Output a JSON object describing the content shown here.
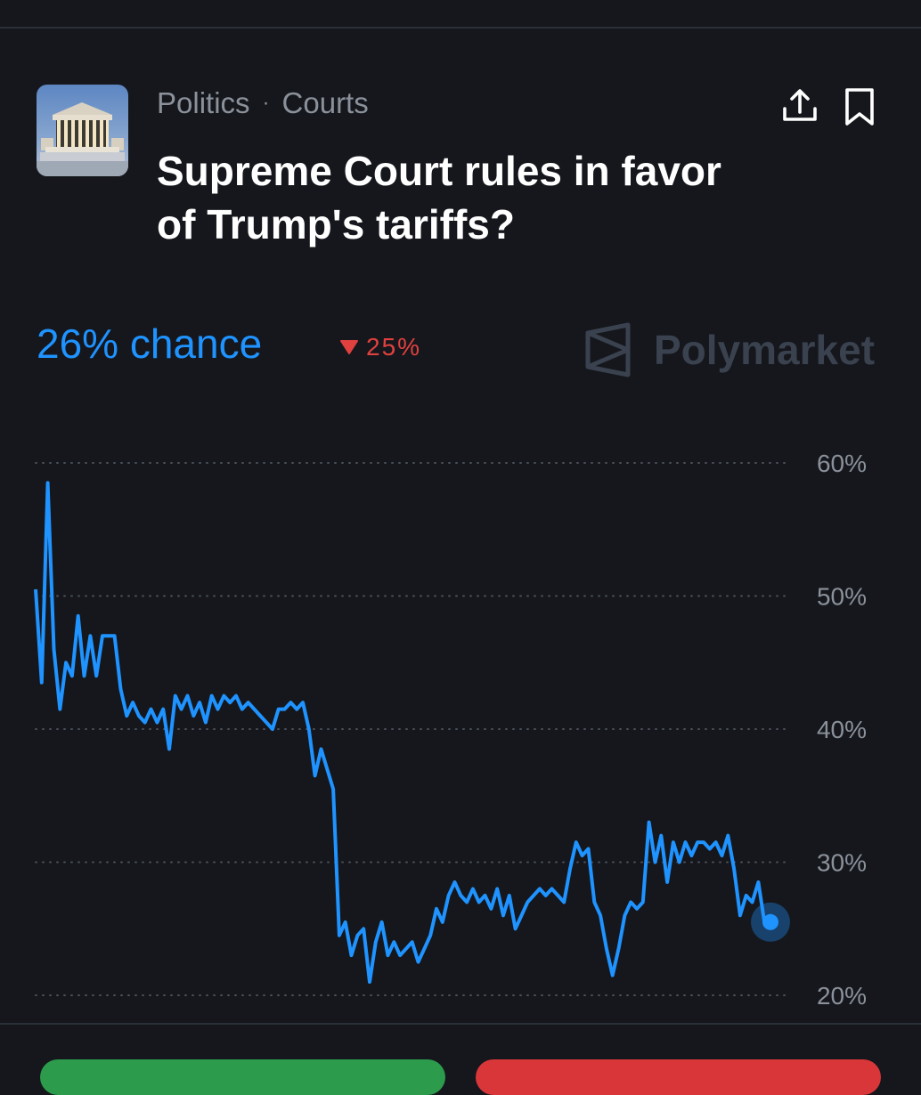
{
  "header": {
    "category": "Politics",
    "separator": "·",
    "subcategory": "Courts",
    "title": "Supreme Court rules in favor of Trump's tariffs?"
  },
  "icons": {
    "share": "share-icon",
    "bookmark": "bookmark-icon",
    "change_direction": "triangle-down-icon",
    "brand_logo": "polymarket-logo-icon"
  },
  "market": {
    "chance_label": "26% chance",
    "change_label": "25%"
  },
  "brand": {
    "name": "Polymarket"
  },
  "colors": {
    "accent": "#1f93ff",
    "negative": "#e0413f",
    "yes_button": "#2c9b4c",
    "no_button": "#d9363a"
  },
  "chart_data": {
    "type": "line",
    "ylim": [
      20,
      60
    ],
    "y_ticks": [
      "60%",
      "50%",
      "40%",
      "30%",
      "20%"
    ],
    "grid": "dotted horizontal",
    "series": [
      {
        "values": [
          50.5,
          43.5,
          58.5,
          46,
          41.5,
          45,
          44,
          48.5,
          44,
          47,
          44,
          47,
          47,
          47,
          43,
          41,
          42,
          41,
          40.5,
          41.5,
          40.5,
          41.5,
          38.5,
          42.5,
          41.5,
          42.5,
          41,
          42,
          40.5,
          42.5,
          41.5,
          42.5,
          42,
          42.5,
          41.5,
          42,
          41.5,
          41,
          40.5,
          40,
          41.5,
          41.5,
          42,
          41.5,
          42,
          40,
          36.5,
          38.5,
          37,
          35.5,
          24.5,
          25.5,
          23,
          24.5,
          25,
          21,
          24,
          25.5,
          23,
          24,
          23,
          23.5,
          24,
          22.5,
          23.5,
          24.5,
          26.5,
          25.5,
          27.5,
          28.5,
          27.5,
          27,
          28,
          27,
          27.5,
          26.5,
          28,
          26,
          27.5,
          25,
          26,
          27,
          27.5,
          28,
          27.5,
          28,
          27.5,
          27,
          29.5,
          31.5,
          30.5,
          31,
          27,
          26,
          23.5,
          21.5,
          23.5,
          26,
          27,
          26.5,
          27,
          33,
          30,
          32,
          28.5,
          31.5,
          30,
          31.5,
          30.5,
          31.5,
          31.5,
          31,
          31.5,
          30.5,
          32,
          29.5,
          26,
          27.5,
          27,
          28.5,
          25.5,
          25.5
        ]
      }
    ],
    "end_marker_value": 25.5
  }
}
